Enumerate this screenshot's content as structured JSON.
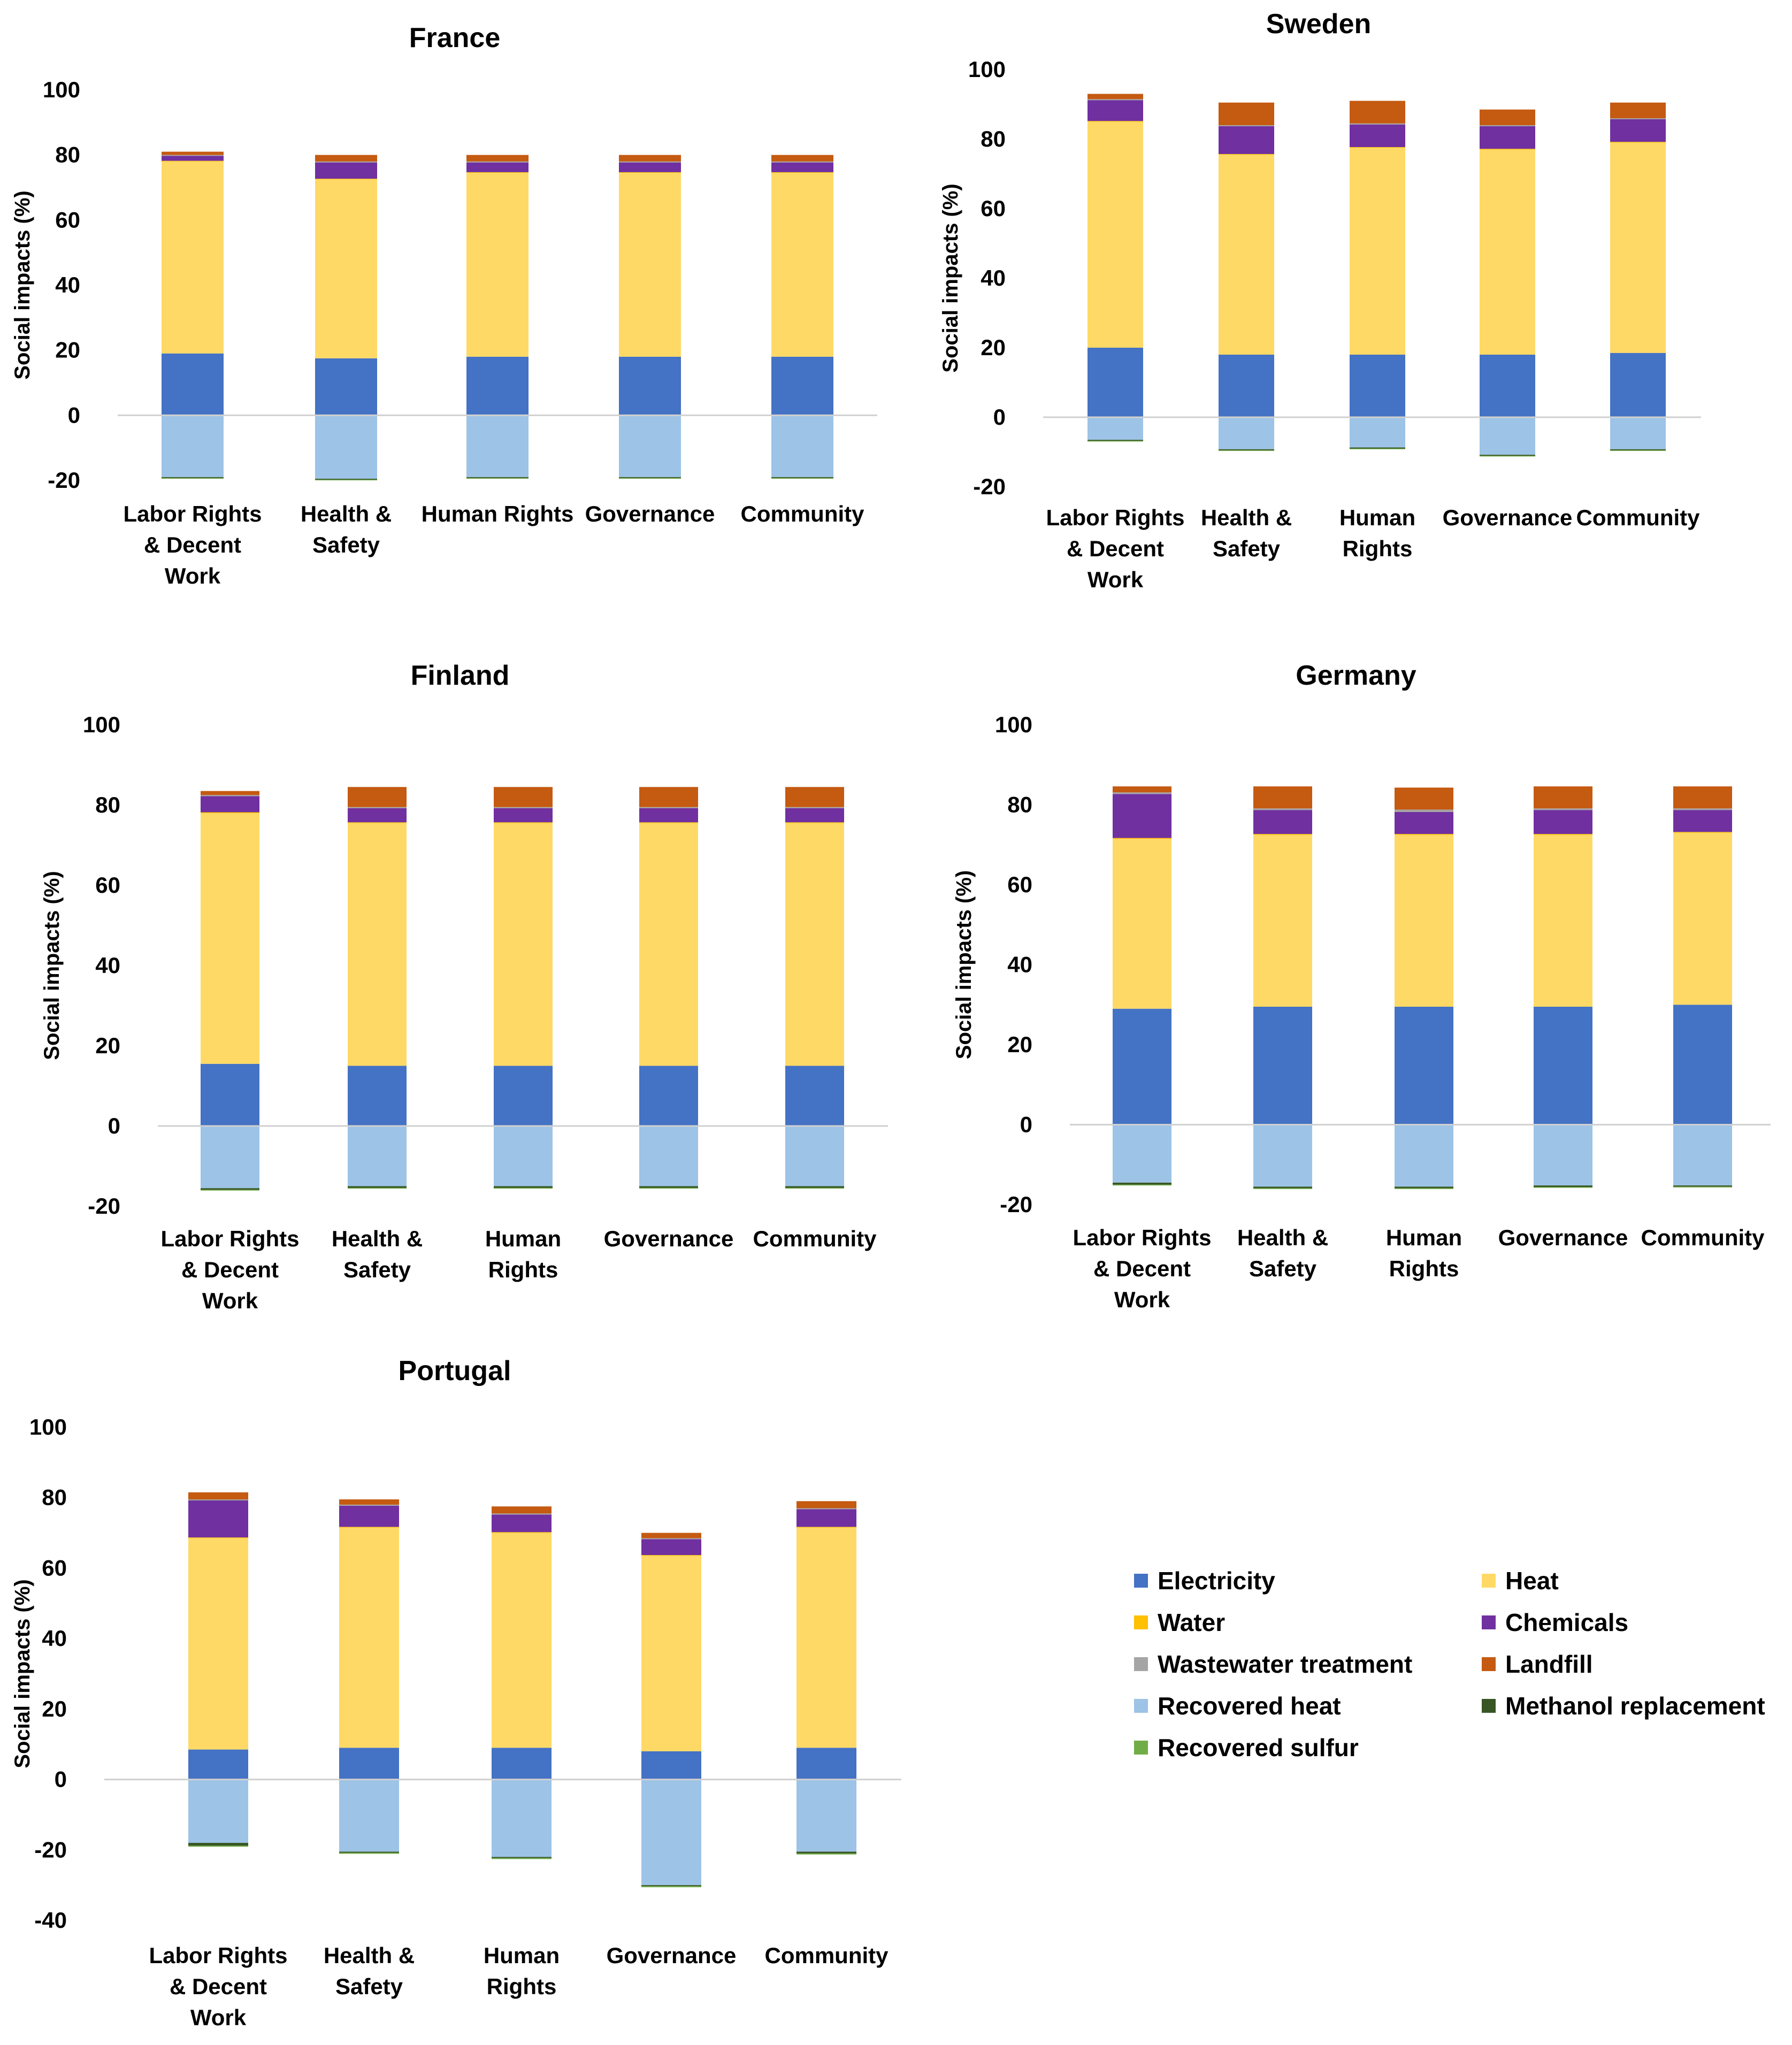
{
  "chart_data": {
    "type": "bar",
    "stacked": true,
    "ylabel": "Social impacts (%)",
    "categories": [
      "Labor Rights & Decent Work",
      "Health & Safety",
      "Human Rights",
      "Governance",
      "Community"
    ],
    "series_names": [
      "Electricity",
      "Heat",
      "Water",
      "Chemicals",
      "Wastewater treatment",
      "Landfill",
      "Recovered heat",
      "Methanol replacement",
      "Recovered sulfur"
    ],
    "colors": {
      "Electricity": "#4472C4",
      "Heat": "#FFD966",
      "Water": "#FFC000",
      "Chemicals": "#7030A0",
      "Wastewater treatment": "#A5A5A5",
      "Landfill": "#C55A11",
      "Recovered heat": "#9DC3E6",
      "Methanol replacement": "#375623",
      "Recovered sulfur": "#70AD47"
    },
    "charts": [
      {
        "title": "France",
        "ylim": [
          -20,
          100
        ],
        "yticks": [
          100,
          80,
          60,
          40,
          20,
          0,
          -20
        ],
        "category_lines": [
          [
            "Labor Rights",
            "& Decent",
            "Work"
          ],
          [
            "Health &",
            "Safety"
          ],
          [
            "Human Rights"
          ],
          [
            "Governance"
          ],
          [
            "Community"
          ]
        ],
        "series": [
          {
            "name": "Electricity",
            "values": [
              19,
              17.5,
              18,
              18,
              18
            ]
          },
          {
            "name": "Heat",
            "values": [
              59,
              55,
              56.5,
              56.5,
              56.5
            ]
          },
          {
            "name": "Water",
            "values": [
              0.2,
              0.2,
              0.2,
              0.2,
              0.2
            ]
          },
          {
            "name": "Chemicals",
            "values": [
              1.5,
              5,
              3,
              3,
              3
            ]
          },
          {
            "name": "Wastewater treatment",
            "values": [
              0.3,
              0.3,
              0.3,
              0.3,
              0.3
            ]
          },
          {
            "name": "Landfill",
            "values": [
              1,
              2,
              2,
              2,
              2
            ]
          },
          {
            "name": "Recovered heat",
            "values": [
              -19,
              -19.5,
              -19,
              -19,
              -19
            ]
          },
          {
            "name": "Methanol replacement",
            "values": [
              -0.3,
              -0.3,
              -0.3,
              -0.3,
              -0.3
            ]
          },
          {
            "name": "Recovered sulfur",
            "values": [
              -0.2,
              -0.2,
              -0.2,
              -0.2,
              -0.2
            ]
          }
        ]
      },
      {
        "title": "Sweden",
        "ylim": [
          -20,
          100
        ],
        "yticks": [
          100,
          80,
          60,
          40,
          20,
          0,
          -20
        ],
        "category_lines": [
          [
            "Labor Rights",
            "& Decent",
            "Work"
          ],
          [
            "Health &",
            "Safety"
          ],
          [
            "Human",
            "Rights"
          ],
          [
            "Governance"
          ],
          [
            "Community"
          ]
        ],
        "series": [
          {
            "name": "Electricity",
            "values": [
              20,
              18,
              18,
              18,
              18.5
            ]
          },
          {
            "name": "Heat",
            "values": [
              65,
              57.5,
              59.5,
              59,
              60.5
            ]
          },
          {
            "name": "Water",
            "values": [
              0.2,
              0.2,
              0.2,
              0.2,
              0.2
            ]
          },
          {
            "name": "Chemicals",
            "values": [
              6,
              8,
              6.5,
              6.5,
              6.5
            ]
          },
          {
            "name": "Wastewater treatment",
            "values": [
              0.3,
              0.3,
              0.3,
              0.3,
              0.3
            ]
          },
          {
            "name": "Landfill",
            "values": [
              1.5,
              6.5,
              6.5,
              4.5,
              4.5
            ]
          },
          {
            "name": "Recovered heat",
            "values": [
              -6.5,
              -9.2,
              -8.7,
              -10.8,
              -9.2
            ]
          },
          {
            "name": "Methanol replacement",
            "values": [
              -0.3,
              -0.3,
              -0.3,
              -0.3,
              -0.3
            ]
          },
          {
            "name": "Recovered sulfur",
            "values": [
              -0.2,
              -0.2,
              -0.2,
              -0.2,
              -0.2
            ]
          }
        ]
      },
      {
        "title": "Finland",
        "ylim": [
          -20,
          100
        ],
        "yticks": [
          100,
          80,
          60,
          40,
          20,
          0,
          -20
        ],
        "category_lines": [
          [
            "Labor Rights",
            "& Decent",
            "Work"
          ],
          [
            "Health &",
            "Safety"
          ],
          [
            "Human",
            "Rights"
          ],
          [
            "Governance"
          ],
          [
            "Community"
          ]
        ],
        "series": [
          {
            "name": "Electricity",
            "values": [
              15.5,
              15,
              15,
              15,
              15
            ]
          },
          {
            "name": "Heat",
            "values": [
              62.5,
              60.5,
              60.5,
              60.5,
              60.5
            ]
          },
          {
            "name": "Water",
            "values": [
              0.2,
              0.2,
              0.2,
              0.2,
              0.2
            ]
          },
          {
            "name": "Chemicals",
            "values": [
              4,
              3.5,
              3.5,
              3.5,
              3.5
            ]
          },
          {
            "name": "Wastewater treatment",
            "values": [
              0.3,
              0.3,
              0.3,
              0.3,
              0.3
            ]
          },
          {
            "name": "Landfill",
            "values": [
              1,
              5,
              5,
              5,
              5
            ]
          },
          {
            "name": "Recovered heat",
            "values": [
              -15.5,
              -15,
              -15,
              -15,
              -15
            ]
          },
          {
            "name": "Methanol replacement",
            "values": [
              -0.4,
              -0.4,
              -0.4,
              -0.4,
              -0.4
            ]
          },
          {
            "name": "Recovered sulfur",
            "values": [
              -0.2,
              -0.2,
              -0.2,
              -0.2,
              -0.2
            ]
          }
        ]
      },
      {
        "title": "Germany",
        "ylim": [
          -20,
          100
        ],
        "yticks": [
          100,
          80,
          60,
          40,
          20,
          0,
          -20
        ],
        "category_lines": [
          [
            "Labor Rights",
            "& Decent",
            "Work"
          ],
          [
            "Health &",
            "Safety"
          ],
          [
            "Human",
            "Rights"
          ],
          [
            "Governance"
          ],
          [
            "Community"
          ]
        ],
        "series": [
          {
            "name": "Electricity",
            "values": [
              29,
              29.5,
              29.5,
              29.5,
              30
            ]
          },
          {
            "name": "Heat",
            "values": [
              42.5,
              43,
              43,
              43,
              43
            ]
          },
          {
            "name": "Water",
            "values": [
              0.2,
              0.2,
              0.2,
              0.2,
              0.2
            ]
          },
          {
            "name": "Chemicals",
            "values": [
              11,
              6,
              5.5,
              6,
              5.5
            ]
          },
          {
            "name": "Wastewater treatment",
            "values": [
              0.4,
              0.4,
              0.6,
              0.4,
              0.4
            ]
          },
          {
            "name": "Landfill",
            "values": [
              1.5,
              5.5,
              5.5,
              5.5,
              5.5
            ]
          },
          {
            "name": "Recovered heat",
            "values": [
              -14.5,
              -15.5,
              -15.5,
              -15.2,
              -15.2
            ]
          },
          {
            "name": "Methanol replacement",
            "values": [
              -0.5,
              -0.4,
              -0.4,
              -0.4,
              -0.3
            ]
          },
          {
            "name": "Recovered sulfur",
            "values": [
              -0.2,
              -0.2,
              -0.2,
              -0.2,
              -0.2
            ]
          }
        ]
      },
      {
        "title": "Portugal",
        "ylim": [
          -40,
          100
        ],
        "yticks": [
          100,
          80,
          60,
          40,
          20,
          0,
          -20,
          -40
        ],
        "category_lines": [
          [
            "Labor Rights",
            "& Decent",
            "Work"
          ],
          [
            "Health &",
            "Safety"
          ],
          [
            "Human",
            "Rights"
          ],
          [
            "Governance"
          ],
          [
            "Community"
          ]
        ],
        "series": [
          {
            "name": "Electricity",
            "values": [
              8.5,
              9,
              9,
              8,
              9
            ]
          },
          {
            "name": "Heat",
            "values": [
              60,
              62.5,
              61,
              55.5,
              62.5
            ]
          },
          {
            "name": "Water",
            "values": [
              0.2,
              0.2,
              0.2,
              0.2,
              0.2
            ]
          },
          {
            "name": "Chemicals",
            "values": [
              10.5,
              6,
              5,
              4.5,
              5
            ]
          },
          {
            "name": "Wastewater treatment",
            "values": [
              0.3,
              0.3,
              0.3,
              0.3,
              0.3
            ]
          },
          {
            "name": "Landfill",
            "values": [
              2,
              1.5,
              2,
              1.5,
              2
            ]
          },
          {
            "name": "Recovered heat",
            "values": [
              -18,
              -20.5,
              -22,
              -30,
              -20.5
            ]
          },
          {
            "name": "Methanol replacement",
            "values": [
              -0.8,
              -0.3,
              -0.3,
              -0.3,
              -0.5
            ]
          },
          {
            "name": "Recovered sulfur",
            "values": [
              -0.3,
              -0.3,
              -0.3,
              -0.3,
              -0.3
            ]
          }
        ]
      }
    ],
    "legend": {
      "position": "bottom-right",
      "items": [
        "Electricity",
        "Heat",
        "Water",
        "Chemicals",
        "Wastewater treatment",
        "Landfill",
        "Recovered heat",
        "Methanol replacement",
        "Recovered sulfur"
      ]
    }
  }
}
